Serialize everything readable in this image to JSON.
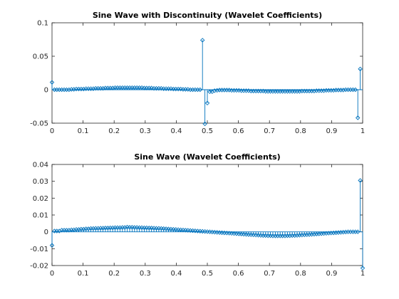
{
  "chart_data": [
    {
      "type": "stem",
      "title": "Sine Wave with Discontinuity (Wavelet Coefficients)",
      "xlabel": "",
      "ylabel": "",
      "xlim": [
        0,
        1
      ],
      "ylim": [
        -0.05,
        0.1
      ],
      "xticks": [
        0,
        0.1,
        0.2,
        0.3,
        0.4,
        0.5,
        0.6,
        0.7,
        0.8,
        0.9,
        1
      ],
      "xtick_labels": [
        "0",
        "0.1",
        "0.2",
        "0.3",
        "0.4",
        "0.5",
        "0.6",
        "0.7",
        "0.8",
        "0.9",
        "1"
      ],
      "yticks": [
        -0.05,
        0,
        0.05,
        0.1
      ],
      "ytick_labels": [
        "-0.05",
        "0",
        "0.05",
        "0.1"
      ],
      "grid": false,
      "color": "#0072BD",
      "points": [
        [
          0.0,
          0.011
        ],
        [
          0.0078,
          0.0
        ],
        [
          0.0156,
          0.0
        ],
        [
          0.0234,
          0.0
        ],
        [
          0.0313,
          0.0
        ],
        [
          0.0391,
          0.0
        ],
        [
          0.0469,
          0.0
        ],
        [
          0.0547,
          0.0
        ],
        [
          0.0625,
          0.0005
        ],
        [
          0.0703,
          0.0005
        ],
        [
          0.0781,
          0.001
        ],
        [
          0.0859,
          0.001
        ],
        [
          0.0938,
          0.001
        ],
        [
          0.1016,
          0.001
        ],
        [
          0.1094,
          0.0015
        ],
        [
          0.1172,
          0.0015
        ],
        [
          0.125,
          0.0015
        ],
        [
          0.1328,
          0.0015
        ],
        [
          0.1406,
          0.002
        ],
        [
          0.1484,
          0.002
        ],
        [
          0.1563,
          0.002
        ],
        [
          0.1641,
          0.002
        ],
        [
          0.1719,
          0.0025
        ],
        [
          0.1797,
          0.0025
        ],
        [
          0.1875,
          0.0025
        ],
        [
          0.1953,
          0.0025
        ],
        [
          0.2031,
          0.003
        ],
        [
          0.2109,
          0.003
        ],
        [
          0.2188,
          0.003
        ],
        [
          0.2266,
          0.003
        ],
        [
          0.2344,
          0.003
        ],
        [
          0.2422,
          0.003
        ],
        [
          0.25,
          0.003
        ],
        [
          0.2578,
          0.003
        ],
        [
          0.2656,
          0.003
        ],
        [
          0.2734,
          0.003
        ],
        [
          0.2813,
          0.003
        ],
        [
          0.2891,
          0.003
        ],
        [
          0.2969,
          0.0025
        ],
        [
          0.3047,
          0.0025
        ],
        [
          0.3125,
          0.0025
        ],
        [
          0.3203,
          0.0025
        ],
        [
          0.3281,
          0.002
        ],
        [
          0.3359,
          0.002
        ],
        [
          0.3438,
          0.002
        ],
        [
          0.3516,
          0.002
        ],
        [
          0.3594,
          0.0015
        ],
        [
          0.3672,
          0.0015
        ],
        [
          0.375,
          0.0015
        ],
        [
          0.3828,
          0.0015
        ],
        [
          0.3906,
          0.001
        ],
        [
          0.3984,
          0.001
        ],
        [
          0.4063,
          0.001
        ],
        [
          0.4141,
          0.001
        ],
        [
          0.4219,
          0.0005
        ],
        [
          0.4297,
          0.0005
        ],
        [
          0.4375,
          0.0005
        ],
        [
          0.4453,
          0.0
        ],
        [
          0.4531,
          0.0
        ],
        [
          0.4609,
          0.0
        ],
        [
          0.4688,
          0.0
        ],
        [
          0.4766,
          0.0
        ],
        [
          0.4844,
          0.074
        ],
        [
          0.4922,
          -0.051
        ],
        [
          0.5,
          -0.02
        ],
        [
          0.5078,
          -0.003
        ],
        [
          0.5156,
          -0.003
        ],
        [
          0.5234,
          -0.0015
        ],
        [
          0.5313,
          -0.001
        ],
        [
          0.5391,
          -0.0005
        ],
        [
          0.5469,
          -0.0005
        ],
        [
          0.5547,
          -0.0005
        ],
        [
          0.5625,
          -0.0005
        ],
        [
          0.5703,
          -0.0005
        ],
        [
          0.5781,
          -0.001
        ],
        [
          0.5859,
          -0.001
        ],
        [
          0.5938,
          -0.001
        ],
        [
          0.6016,
          -0.001
        ],
        [
          0.6094,
          -0.0015
        ],
        [
          0.6172,
          -0.0015
        ],
        [
          0.625,
          -0.0015
        ],
        [
          0.6328,
          -0.0015
        ],
        [
          0.6406,
          -0.002
        ],
        [
          0.6484,
          -0.002
        ],
        [
          0.6563,
          -0.002
        ],
        [
          0.6641,
          -0.002
        ],
        [
          0.6719,
          -0.002
        ],
        [
          0.6797,
          -0.002
        ],
        [
          0.6875,
          -0.0025
        ],
        [
          0.6953,
          -0.0025
        ],
        [
          0.7031,
          -0.0025
        ],
        [
          0.7109,
          -0.0025
        ],
        [
          0.7188,
          -0.0025
        ],
        [
          0.7266,
          -0.0025
        ],
        [
          0.7344,
          -0.0025
        ],
        [
          0.7422,
          -0.0025
        ],
        [
          0.75,
          -0.0025
        ],
        [
          0.7578,
          -0.0025
        ],
        [
          0.7656,
          -0.0025
        ],
        [
          0.7734,
          -0.0025
        ],
        [
          0.7813,
          -0.0025
        ],
        [
          0.7891,
          -0.0025
        ],
        [
          0.7969,
          -0.0025
        ],
        [
          0.8047,
          -0.002
        ],
        [
          0.8125,
          -0.002
        ],
        [
          0.8203,
          -0.002
        ],
        [
          0.8281,
          -0.002
        ],
        [
          0.8359,
          -0.002
        ],
        [
          0.8438,
          -0.002
        ],
        [
          0.8516,
          -0.0015
        ],
        [
          0.8594,
          -0.0015
        ],
        [
          0.8672,
          -0.0015
        ],
        [
          0.875,
          -0.0015
        ],
        [
          0.8828,
          -0.001
        ],
        [
          0.8906,
          -0.001
        ],
        [
          0.8984,
          -0.001
        ],
        [
          0.9063,
          -0.001
        ],
        [
          0.9141,
          -0.0005
        ],
        [
          0.9219,
          -0.0005
        ],
        [
          0.9297,
          -0.0005
        ],
        [
          0.9375,
          -0.0005
        ],
        [
          0.9453,
          0.0
        ],
        [
          0.9531,
          0.0
        ],
        [
          0.9609,
          0.0
        ],
        [
          0.9688,
          0.0
        ],
        [
          0.9766,
          0.0
        ],
        [
          0.9844,
          -0.042
        ],
        [
          0.9922,
          0.031
        ]
      ]
    },
    {
      "type": "stem",
      "title": "Sine Wave (Wavelet Coefficients)",
      "xlabel": "",
      "ylabel": "",
      "xlim": [
        0,
        1
      ],
      "ylim": [
        -0.02,
        0.04
      ],
      "xticks": [
        0,
        0.1,
        0.2,
        0.3,
        0.4,
        0.5,
        0.6,
        0.7,
        0.8,
        0.9,
        1
      ],
      "xtick_labels": [
        "0",
        "0.1",
        "0.2",
        "0.3",
        "0.4",
        "0.5",
        "0.6",
        "0.7",
        "0.8",
        "0.9",
        "1"
      ],
      "yticks": [
        -0.02,
        -0.01,
        0,
        0.01,
        0.02,
        0.03,
        0.04
      ],
      "ytick_labels": [
        "-0.02",
        "-0.01",
        "0",
        "0.01",
        "0.02",
        "0.03",
        "0.04"
      ],
      "grid": false,
      "color": "#0072BD",
      "points": [
        [
          0.0,
          -0.008
        ],
        [
          0.0078,
          0.0005
        ],
        [
          0.0156,
          0.0005
        ],
        [
          0.0234,
          0.0005
        ],
        [
          0.0313,
          0.001
        ],
        [
          0.0391,
          0.001
        ],
        [
          0.0469,
          0.001
        ],
        [
          0.0547,
          0.001
        ],
        [
          0.0625,
          0.0012
        ],
        [
          0.0703,
          0.0012
        ],
        [
          0.0781,
          0.0014
        ],
        [
          0.0859,
          0.0014
        ],
        [
          0.0938,
          0.0016
        ],
        [
          0.1016,
          0.0016
        ],
        [
          0.1094,
          0.0018
        ],
        [
          0.1172,
          0.0018
        ],
        [
          0.125,
          0.002
        ],
        [
          0.1328,
          0.002
        ],
        [
          0.1406,
          0.0021
        ],
        [
          0.1484,
          0.0021
        ],
        [
          0.1563,
          0.0022
        ],
        [
          0.1641,
          0.0022
        ],
        [
          0.1719,
          0.0023
        ],
        [
          0.1797,
          0.0023
        ],
        [
          0.1875,
          0.0024
        ],
        [
          0.1953,
          0.0024
        ],
        [
          0.2031,
          0.0025
        ],
        [
          0.2109,
          0.0025
        ],
        [
          0.2188,
          0.0025
        ],
        [
          0.2266,
          0.0026
        ],
        [
          0.2344,
          0.0026
        ],
        [
          0.2422,
          0.0028
        ],
        [
          0.25,
          0.0027
        ],
        [
          0.2578,
          0.0027
        ],
        [
          0.2656,
          0.0026
        ],
        [
          0.2734,
          0.0026
        ],
        [
          0.2813,
          0.0025
        ],
        [
          0.2891,
          0.0025
        ],
        [
          0.2969,
          0.0024
        ],
        [
          0.3047,
          0.0024
        ],
        [
          0.3125,
          0.0023
        ],
        [
          0.3203,
          0.0023
        ],
        [
          0.3281,
          0.0022
        ],
        [
          0.3359,
          0.0021
        ],
        [
          0.3438,
          0.0021
        ],
        [
          0.3516,
          0.002
        ],
        [
          0.3594,
          0.0019
        ],
        [
          0.3672,
          0.0018
        ],
        [
          0.375,
          0.0017
        ],
        [
          0.3828,
          0.0016
        ],
        [
          0.3906,
          0.0015
        ],
        [
          0.3984,
          0.0014
        ],
        [
          0.4063,
          0.0013
        ],
        [
          0.4141,
          0.0012
        ],
        [
          0.4219,
          0.0011
        ],
        [
          0.4297,
          0.001
        ],
        [
          0.4375,
          0.0009
        ],
        [
          0.4453,
          0.0008
        ],
        [
          0.4531,
          0.0007
        ],
        [
          0.4609,
          0.0006
        ],
        [
          0.4688,
          0.0005
        ],
        [
          0.4766,
          0.0004
        ],
        [
          0.4844,
          0.0003
        ],
        [
          0.4922,
          0.0002
        ],
        [
          0.5,
          0.0001
        ],
        [
          0.5078,
          0.0
        ],
        [
          0.5156,
          -0.0001
        ],
        [
          0.5234,
          -0.0002
        ],
        [
          0.5313,
          -0.0003
        ],
        [
          0.5391,
          -0.0004
        ],
        [
          0.5469,
          -0.0005
        ],
        [
          0.5547,
          -0.0006
        ],
        [
          0.5625,
          -0.0007
        ],
        [
          0.5703,
          -0.0008
        ],
        [
          0.5781,
          -0.0009
        ],
        [
          0.5859,
          -0.001
        ],
        [
          0.5938,
          -0.0011
        ],
        [
          0.6016,
          -0.0012
        ],
        [
          0.6094,
          -0.0013
        ],
        [
          0.6172,
          -0.0014
        ],
        [
          0.625,
          -0.0015
        ],
        [
          0.6328,
          -0.0016
        ],
        [
          0.6406,
          -0.0017
        ],
        [
          0.6484,
          -0.0018
        ],
        [
          0.6563,
          -0.0019
        ],
        [
          0.6641,
          -0.002
        ],
        [
          0.6719,
          -0.0021
        ],
        [
          0.6797,
          -0.0022
        ],
        [
          0.6875,
          -0.0022
        ],
        [
          0.6953,
          -0.0023
        ],
        [
          0.7031,
          -0.0023
        ],
        [
          0.7109,
          -0.0024
        ],
        [
          0.7188,
          -0.0024
        ],
        [
          0.7266,
          -0.0024
        ],
        [
          0.7344,
          -0.0024
        ],
        [
          0.7422,
          -0.0024
        ],
        [
          0.75,
          -0.0024
        ],
        [
          0.7578,
          -0.0023
        ],
        [
          0.7656,
          -0.0023
        ],
        [
          0.7734,
          -0.0022
        ],
        [
          0.7813,
          -0.0022
        ],
        [
          0.7891,
          -0.0021
        ],
        [
          0.7969,
          -0.002
        ],
        [
          0.8047,
          -0.0019
        ],
        [
          0.8125,
          -0.0018
        ],
        [
          0.8203,
          -0.0017
        ],
        [
          0.8281,
          -0.0016
        ],
        [
          0.8359,
          -0.0015
        ],
        [
          0.8438,
          -0.0014
        ],
        [
          0.8516,
          -0.0013
        ],
        [
          0.8594,
          -0.0012
        ],
        [
          0.8672,
          -0.0011
        ],
        [
          0.875,
          -0.001
        ],
        [
          0.8828,
          -0.0009
        ],
        [
          0.8906,
          -0.0008
        ],
        [
          0.8984,
          -0.0007
        ],
        [
          0.9063,
          -0.0006
        ],
        [
          0.9141,
          -0.0005
        ],
        [
          0.9219,
          -0.0004
        ],
        [
          0.9297,
          -0.0003
        ],
        [
          0.9375,
          -0.0002
        ],
        [
          0.9453,
          -0.0001
        ],
        [
          0.9531,
          0.0
        ],
        [
          0.9609,
          0.0
        ],
        [
          0.9688,
          0.0
        ],
        [
          0.9766,
          0.0
        ],
        [
          0.9844,
          0.0
        ],
        [
          0.9922,
          0.0305
        ],
        [
          1.0,
          -0.0215
        ]
      ]
    }
  ]
}
